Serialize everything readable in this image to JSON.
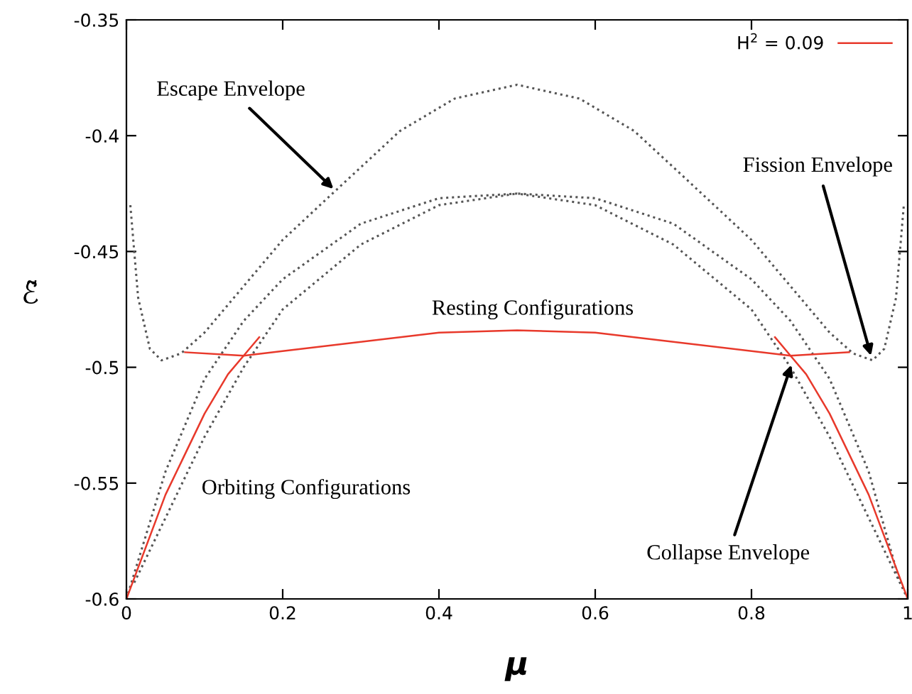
{
  "chart_data": {
    "type": "line",
    "xlabel": "μ",
    "ylabel": "ℰ̃",
    "xlim": [
      0,
      1
    ],
    "ylim": [
      -0.6,
      -0.35
    ],
    "xticks": [
      0,
      0.2,
      0.4,
      0.6,
      0.8,
      1
    ],
    "yticks": [
      -0.6,
      -0.55,
      -0.5,
      -0.45,
      -0.4,
      -0.35
    ],
    "grid": false,
    "legend": "top right",
    "marker": "none",
    "series": [
      {
        "color": "#555555",
        "line_style": "dotted",
        "x": [
          0.005,
          0.015,
          0.03,
          0.045,
          0.07,
          0.1,
          0.15,
          0.2,
          0.27,
          0.35,
          0.42,
          0.5,
          0.58,
          0.65,
          0.73,
          0.8,
          0.85,
          0.9,
          0.93,
          0.955,
          0.97,
          0.985,
          0.995
        ],
        "values": [
          -0.43,
          -0.47,
          -0.492,
          -0.497,
          -0.494,
          -0.485,
          -0.465,
          -0.445,
          -0.423,
          -0.398,
          -0.384,
          -0.378,
          -0.384,
          -0.398,
          -0.423,
          -0.445,
          -0.465,
          -0.485,
          -0.494,
          -0.497,
          -0.492,
          -0.47,
          -0.43
        ]
      },
      {
        "color": "#555555",
        "line_style": "dotted",
        "x": [
          0,
          0.05,
          0.1,
          0.15,
          0.2,
          0.3,
          0.4,
          0.5,
          0.6,
          0.7,
          0.8,
          0.85,
          0.9,
          0.95,
          1
        ],
        "values": [
          -0.6,
          -0.545,
          -0.505,
          -0.48,
          -0.462,
          -0.438,
          -0.427,
          -0.425,
          -0.43,
          -0.447,
          -0.475,
          -0.5,
          -0.53,
          -0.565,
          -0.6
        ]
      },
      {
        "color": "#555555",
        "line_style": "dotted",
        "x": [
          0.01,
          0.05,
          0.1,
          0.15,
          0.2,
          0.3,
          0.4,
          0.5,
          0.6,
          0.7,
          0.8,
          0.85,
          0.9,
          0.95,
          0.99
        ],
        "values": [
          -0.593,
          -0.565,
          -0.53,
          -0.5,
          -0.475,
          -0.447,
          -0.43,
          -0.425,
          -0.427,
          -0.438,
          -0.462,
          -0.48,
          -0.505,
          -0.545,
          -0.593
        ]
      },
      {
        "name": "H$^{2}$ = 0.09",
        "color": "#e8392b",
        "line_style": "solid",
        "x": [
          0.075,
          0.15,
          0.3,
          0.4,
          0.5,
          0.6,
          0.7,
          0.85,
          0.925
        ],
        "values": [
          -0.4935,
          -0.495,
          -0.489,
          -0.485,
          -0.484,
          -0.485,
          -0.489,
          -0.495,
          -0.4935
        ]
      },
      {
        "color": "#e8392b",
        "line_style": "solid",
        "x": [
          0,
          0.05,
          0.1,
          0.13,
          0.155,
          0.17
        ],
        "values": [
          -0.6,
          -0.555,
          -0.52,
          -0.503,
          -0.493,
          -0.487
        ]
      },
      {
        "color": "#e8392b",
        "line_style": "solid",
        "x": [
          0.83,
          0.845,
          0.87,
          0.9,
          0.95,
          1
        ],
        "values": [
          -0.487,
          -0.493,
          -0.503,
          -0.52,
          -0.555,
          -0.6
        ]
      }
    ],
    "annotations": [
      {
        "text": "Escape Envelope",
        "x": 0.265,
        "y": -0.423
      },
      {
        "text": "Fission Envelope",
        "x": 0.953,
        "y": -0.495
      },
      {
        "text": "Collapse Envelope",
        "x": 0.851,
        "y": -0.499
      },
      "Resting Configurations",
      "Orbiting Configurations"
    ]
  }
}
